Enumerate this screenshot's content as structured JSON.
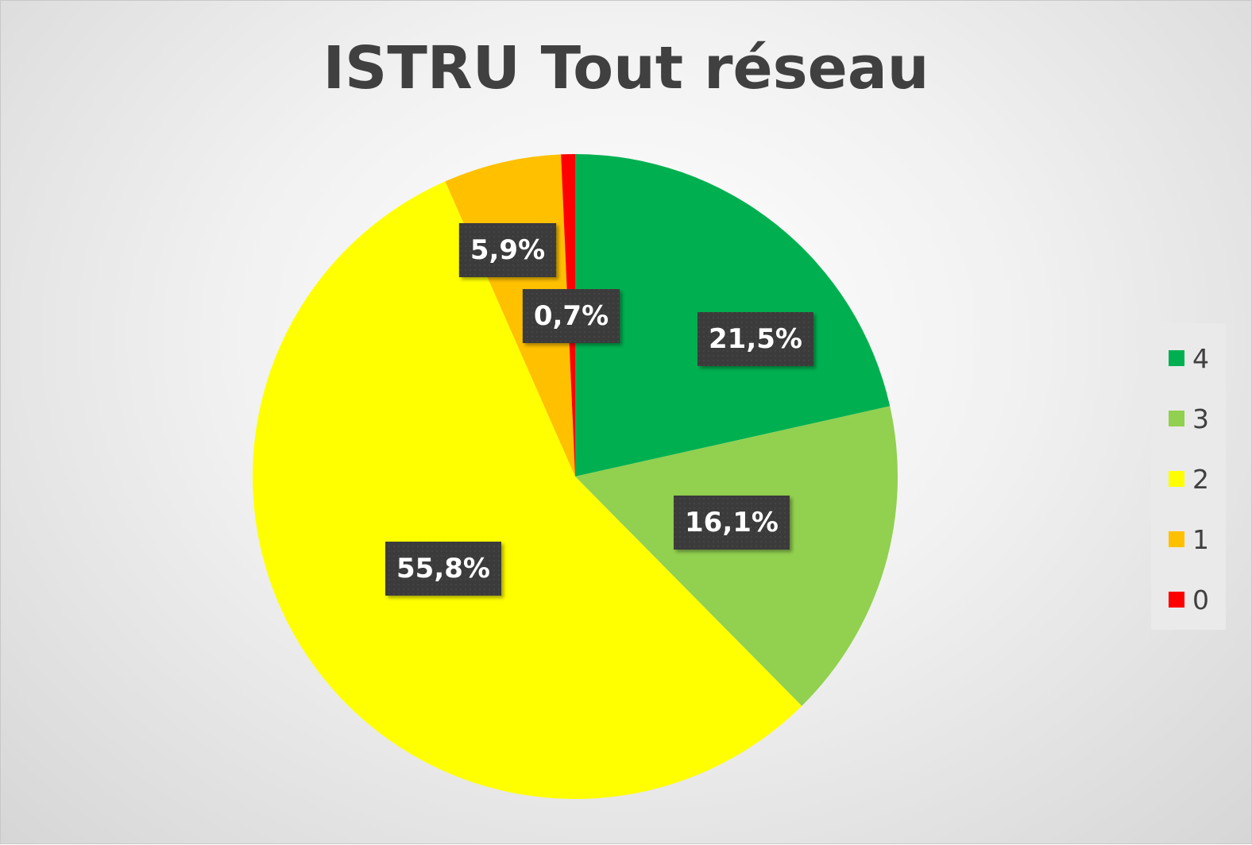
{
  "chart_data": {
    "type": "pie",
    "title": "ISTRU Tout réseau",
    "categories": [
      "4",
      "3",
      "2",
      "1",
      "0"
    ],
    "values": [
      21.5,
      16.1,
      55.8,
      5.9,
      0.7
    ],
    "labels": [
      "21,5%",
      "16,1%",
      "55,8%",
      "5,9%",
      "0,7%"
    ],
    "colors": [
      "#00b050",
      "#92d050",
      "#ffff00",
      "#ffc000",
      "#ff0000"
    ],
    "legend_position": "right",
    "start_angle_deg": 0,
    "direction": "clockwise"
  }
}
